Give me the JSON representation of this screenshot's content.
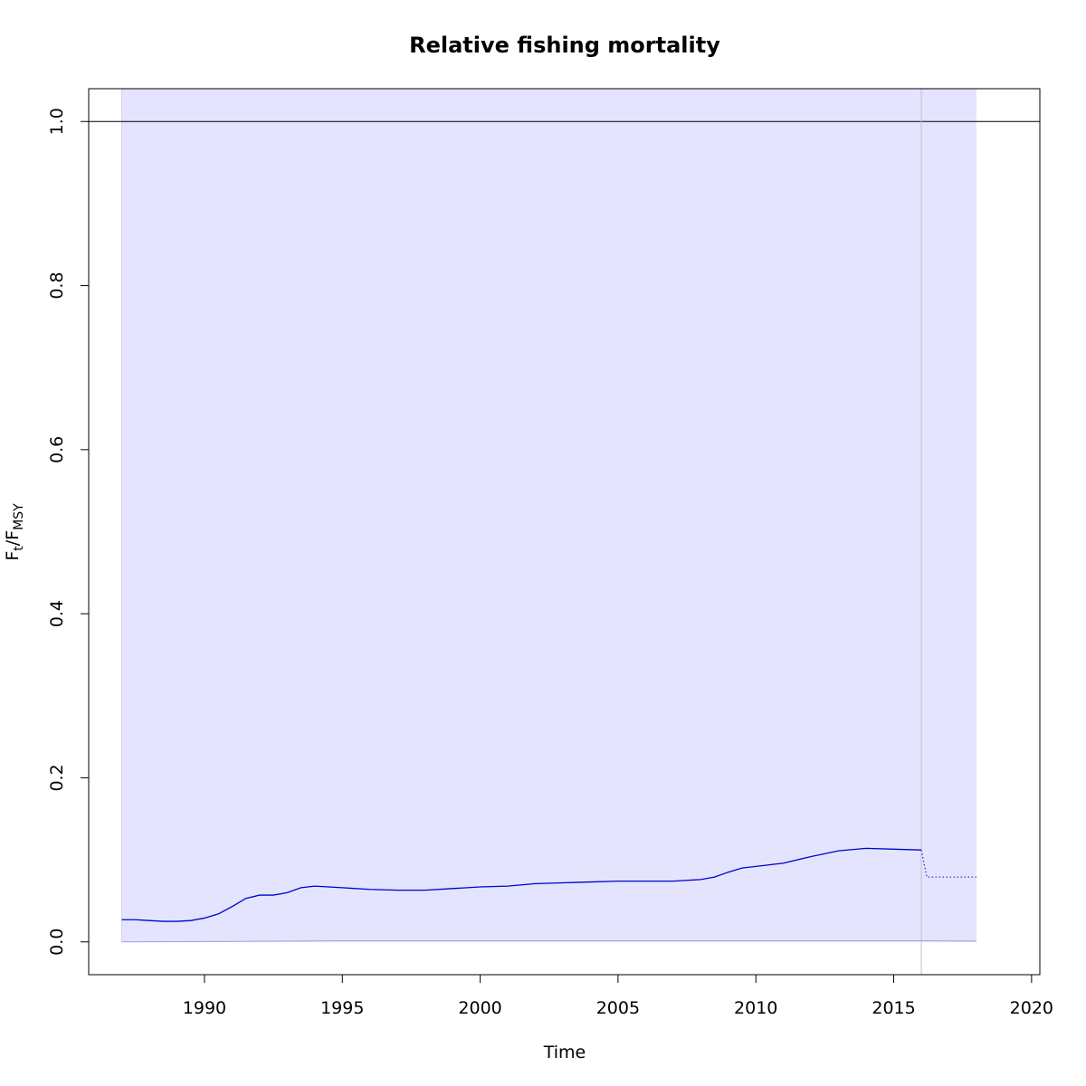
{
  "chart_data": {
    "type": "line",
    "title": "Relative fishing mortality",
    "xlabel": "Time",
    "ylabel": {
      "main": "F",
      "sub1": "t",
      "sep": "/F",
      "sub2": "MSY"
    },
    "xlim": [
      1985.8,
      2020.3
    ],
    "ylim": [
      -0.04,
      1.04
    ],
    "xticks": [
      1990,
      1995,
      2000,
      2005,
      2010,
      2015,
      2020
    ],
    "xtick_labels": [
      "1990",
      "1995",
      "2000",
      "2005",
      "2010",
      "2015",
      "2020"
    ],
    "yticks": [
      0.0,
      0.2,
      0.4,
      0.6,
      0.8,
      1.0
    ],
    "ytick_labels": [
      "0.0",
      "0.2",
      "0.4",
      "0.6",
      "0.8",
      "1.0"
    ],
    "reference_line_y": 1.0,
    "forecast_start_x": 2016.0,
    "confidence_band": {
      "x_start": 1987.0,
      "x_end": 2018.0,
      "lower": 0.0,
      "upper": 1.04,
      "color": "#e4e4fe"
    },
    "series": [
      {
        "style": "solid",
        "color": "#0000cc",
        "x": [
          1987.0,
          1987.5,
          1988.0,
          1988.5,
          1989.0,
          1989.5,
          1990.0,
          1990.5,
          1991.0,
          1991.5,
          1992.0,
          1992.5,
          1993.0,
          1993.5,
          1994.0,
          1995.0,
          1996.0,
          1997.0,
          1997.5,
          1998.0,
          1999.0,
          2000.0,
          2001.0,
          2002.0,
          2003.0,
          2004.0,
          2005.0,
          2006.0,
          2007.0,
          2008.0,
          2008.5,
          2009.0,
          2009.5,
          2010.0,
          2011.0,
          2012.0,
          2013.0,
          2014.0,
          2015.0,
          2016.0
        ],
        "y": [
          0.027,
          0.027,
          0.026,
          0.025,
          0.025,
          0.026,
          0.029,
          0.034,
          0.043,
          0.053,
          0.057,
          0.057,
          0.06,
          0.066,
          0.068,
          0.066,
          0.064,
          0.063,
          0.063,
          0.063,
          0.065,
          0.067,
          0.068,
          0.071,
          0.072,
          0.073,
          0.074,
          0.074,
          0.074,
          0.076,
          0.079,
          0.085,
          0.09,
          0.092,
          0.096,
          0.104,
          0.111,
          0.114,
          0.113,
          0.112
        ]
      },
      {
        "style": "dotted",
        "color": "#3333dd",
        "x": [
          2016.0,
          2016.2,
          2018.0
        ],
        "y": [
          0.112,
          0.079,
          0.079
        ]
      }
    ],
    "lower_series": {
      "color": "#9a9af0",
      "x": [
        1987.0,
        1995.0,
        2005.0,
        2016.0,
        2018.0
      ],
      "y": [
        0.0,
        0.0012,
        0.0012,
        0.0012,
        0.001
      ]
    }
  }
}
